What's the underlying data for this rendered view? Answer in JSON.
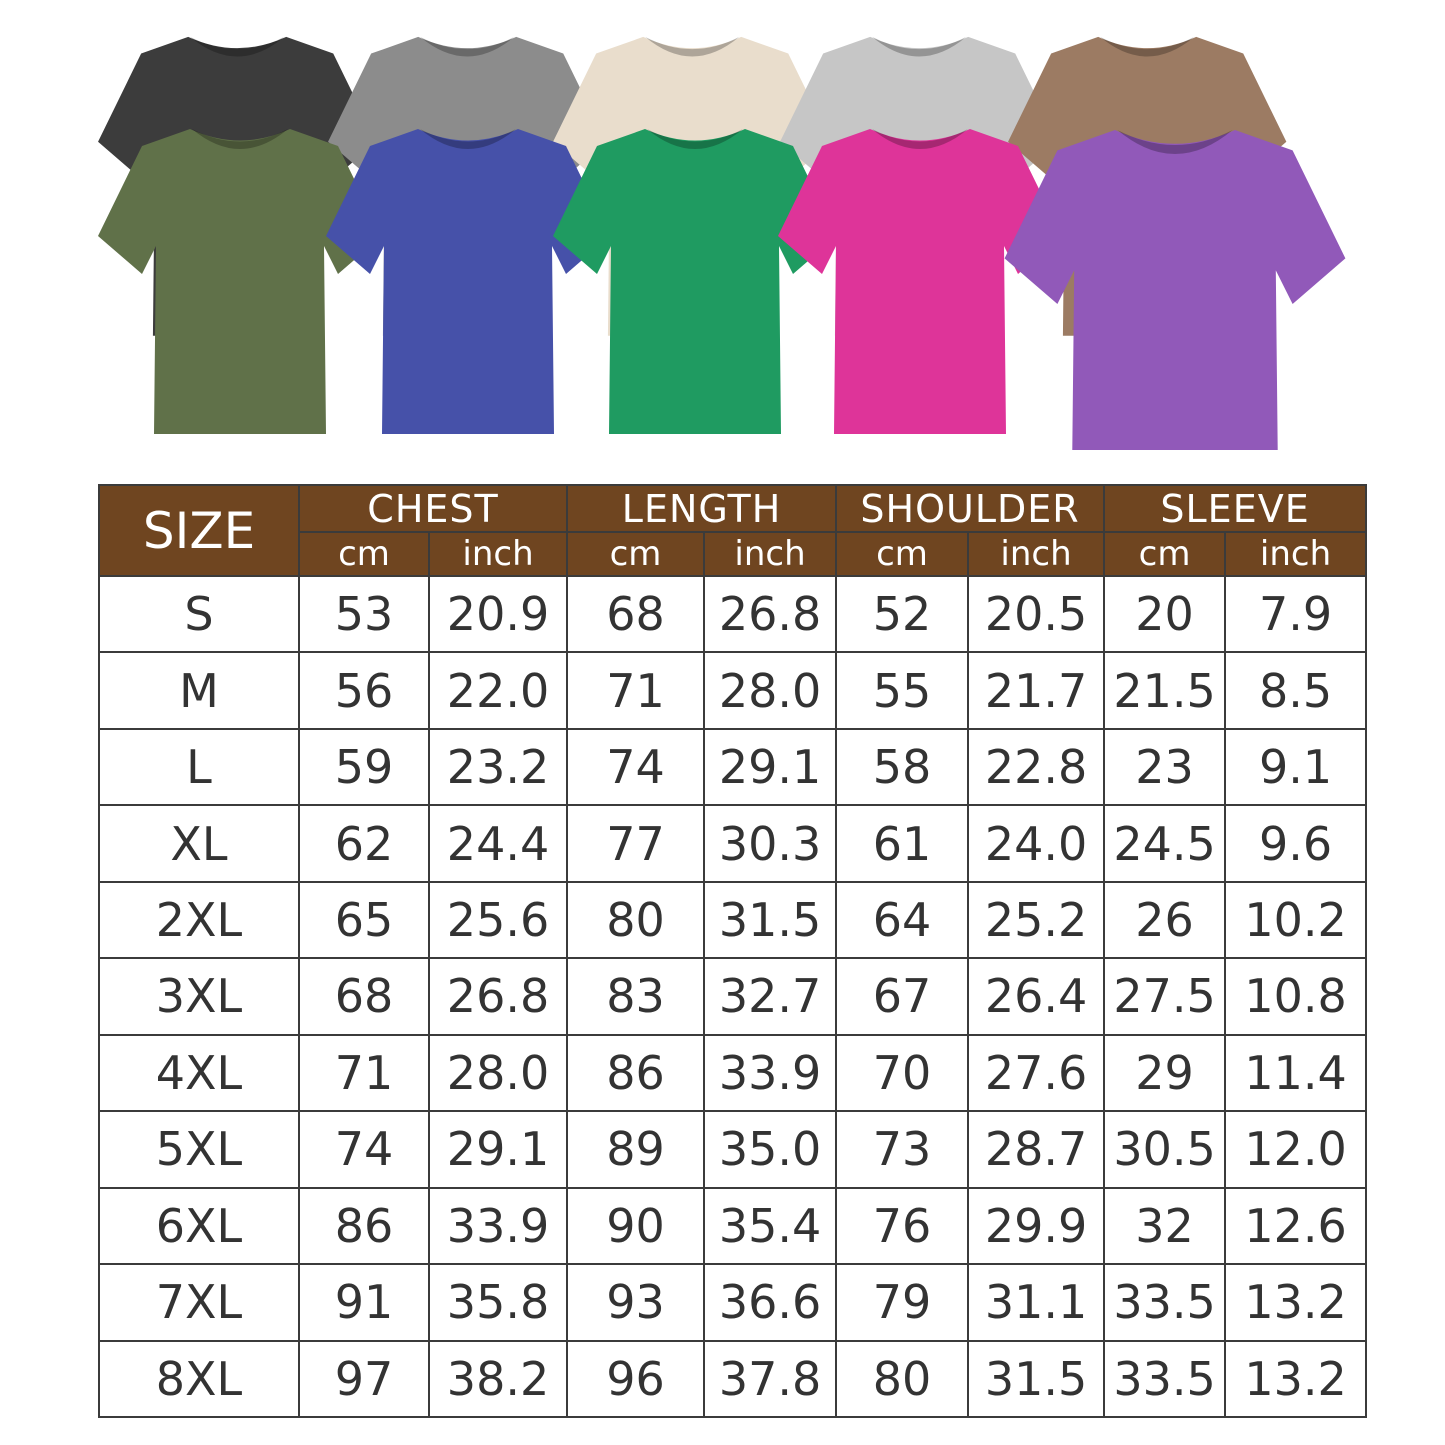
{
  "shirts": {
    "back_row": [
      {
        "color_name": "black",
        "color": "#3c3c3c"
      },
      {
        "color_name": "grey",
        "color": "#8c8c8c"
      },
      {
        "color_name": "cream",
        "color": "#e9ddcc"
      },
      {
        "color_name": "light-grey",
        "color": "#c6c6c6"
      },
      {
        "color_name": "brown",
        "color": "#9c7b63"
      }
    ],
    "front_row": [
      {
        "color_name": "olive",
        "color": "#607149"
      },
      {
        "color_name": "blue",
        "color": "#4651a9"
      },
      {
        "color_name": "green",
        "color": "#1f9b61"
      },
      {
        "color_name": "pink",
        "color": "#de3499"
      },
      {
        "color_name": "purple",
        "color": "#9159b9"
      }
    ]
  },
  "table": {
    "header_color": "#6f4520",
    "size_label": "SIZE",
    "groups": [
      "CHEST",
      "LENGTH",
      "SHOULDER",
      "SLEEVE"
    ],
    "units": [
      "cm",
      "inch"
    ],
    "rows": [
      [
        "S",
        "53",
        "20.9",
        "68",
        "26.8",
        "52",
        "20.5",
        "20",
        "7.9"
      ],
      [
        "M",
        "56",
        "22.0",
        "71",
        "28.0",
        "55",
        "21.7",
        "21.5",
        "8.5"
      ],
      [
        "L",
        "59",
        "23.2",
        "74",
        "29.1",
        "58",
        "22.8",
        "23",
        "9.1"
      ],
      [
        "XL",
        "62",
        "24.4",
        "77",
        "30.3",
        "61",
        "24.0",
        "24.5",
        "9.6"
      ],
      [
        "2XL",
        "65",
        "25.6",
        "80",
        "31.5",
        "64",
        "25.2",
        "26",
        "10.2"
      ],
      [
        "3XL",
        "68",
        "26.8",
        "83",
        "32.7",
        "67",
        "26.4",
        "27.5",
        "10.8"
      ],
      [
        "4XL",
        "71",
        "28.0",
        "86",
        "33.9",
        "70",
        "27.6",
        "29",
        "11.4"
      ],
      [
        "5XL",
        "74",
        "29.1",
        "89",
        "35.0",
        "73",
        "28.7",
        "30.5",
        "12.0"
      ],
      [
        "6XL",
        "86",
        "33.9",
        "90",
        "35.4",
        "76",
        "29.9",
        "32",
        "12.6"
      ],
      [
        "7XL",
        "91",
        "35.8",
        "93",
        "36.6",
        "79",
        "31.1",
        "33.5",
        "13.2"
      ],
      [
        "8XL",
        "97",
        "38.2",
        "96",
        "37.8",
        "80",
        "31.5",
        "33.5",
        "13.2"
      ]
    ]
  }
}
